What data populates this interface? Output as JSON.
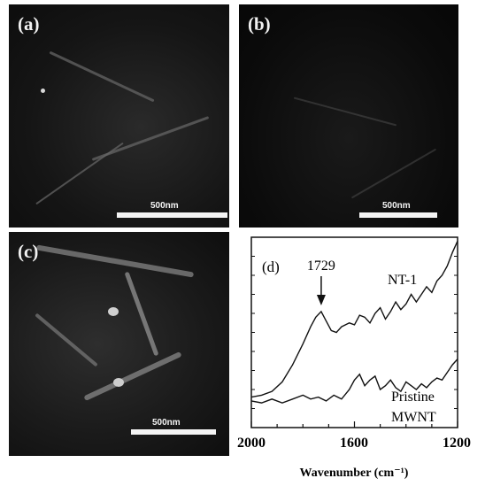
{
  "panels": {
    "a": {
      "label": "(a)",
      "scale_text": "500nm"
    },
    "b": {
      "label": "(b)",
      "scale_text": "500nm"
    },
    "c": {
      "label": "(c)",
      "scale_text": "500nm"
    }
  },
  "chart_data": {
    "type": "line",
    "panel_label": "(d)",
    "xlabel": "Wavenumber (cm⁻¹)",
    "ylabel": "",
    "xlim": [
      2000,
      1200
    ],
    "x_reversed": true,
    "xticks": [
      "2000",
      "1600",
      "1200"
    ],
    "annotation": {
      "text": "1729",
      "x": 1729
    },
    "series": [
      {
        "name": "NT-1",
        "x": [
          2000,
          1960,
          1920,
          1880,
          1840,
          1800,
          1770,
          1750,
          1729,
          1710,
          1690,
          1670,
          1650,
          1620,
          1600,
          1580,
          1560,
          1540,
          1520,
          1500,
          1480,
          1460,
          1440,
          1420,
          1400,
          1380,
          1360,
          1340,
          1320,
          1300,
          1280,
          1260,
          1240,
          1220,
          1200
        ],
        "y": [
          0.16,
          0.17,
          0.19,
          0.24,
          0.33,
          0.44,
          0.53,
          0.58,
          0.61,
          0.56,
          0.51,
          0.5,
          0.53,
          0.55,
          0.54,
          0.59,
          0.58,
          0.55,
          0.6,
          0.63,
          0.57,
          0.61,
          0.66,
          0.62,
          0.65,
          0.7,
          0.66,
          0.7,
          0.74,
          0.71,
          0.77,
          0.8,
          0.85,
          0.92,
          0.98
        ]
      },
      {
        "name": "Pristine MWNT",
        "x": [
          2000,
          1960,
          1920,
          1880,
          1840,
          1800,
          1770,
          1740,
          1710,
          1680,
          1650,
          1620,
          1600,
          1580,
          1560,
          1540,
          1520,
          1500,
          1480,
          1460,
          1440,
          1420,
          1400,
          1380,
          1360,
          1340,
          1320,
          1300,
          1280,
          1260,
          1240,
          1220,
          1200
        ],
        "y": [
          0.14,
          0.13,
          0.15,
          0.13,
          0.15,
          0.17,
          0.15,
          0.16,
          0.14,
          0.17,
          0.15,
          0.2,
          0.25,
          0.28,
          0.22,
          0.25,
          0.27,
          0.2,
          0.22,
          0.25,
          0.21,
          0.19,
          0.24,
          0.22,
          0.2,
          0.23,
          0.21,
          0.24,
          0.26,
          0.25,
          0.29,
          0.33,
          0.36
        ]
      }
    ],
    "series_labels": [
      "NT-1",
      "Pristine",
      "MWNT"
    ],
    "colors": {
      "line": "#111111",
      "frame": "#111111"
    }
  }
}
